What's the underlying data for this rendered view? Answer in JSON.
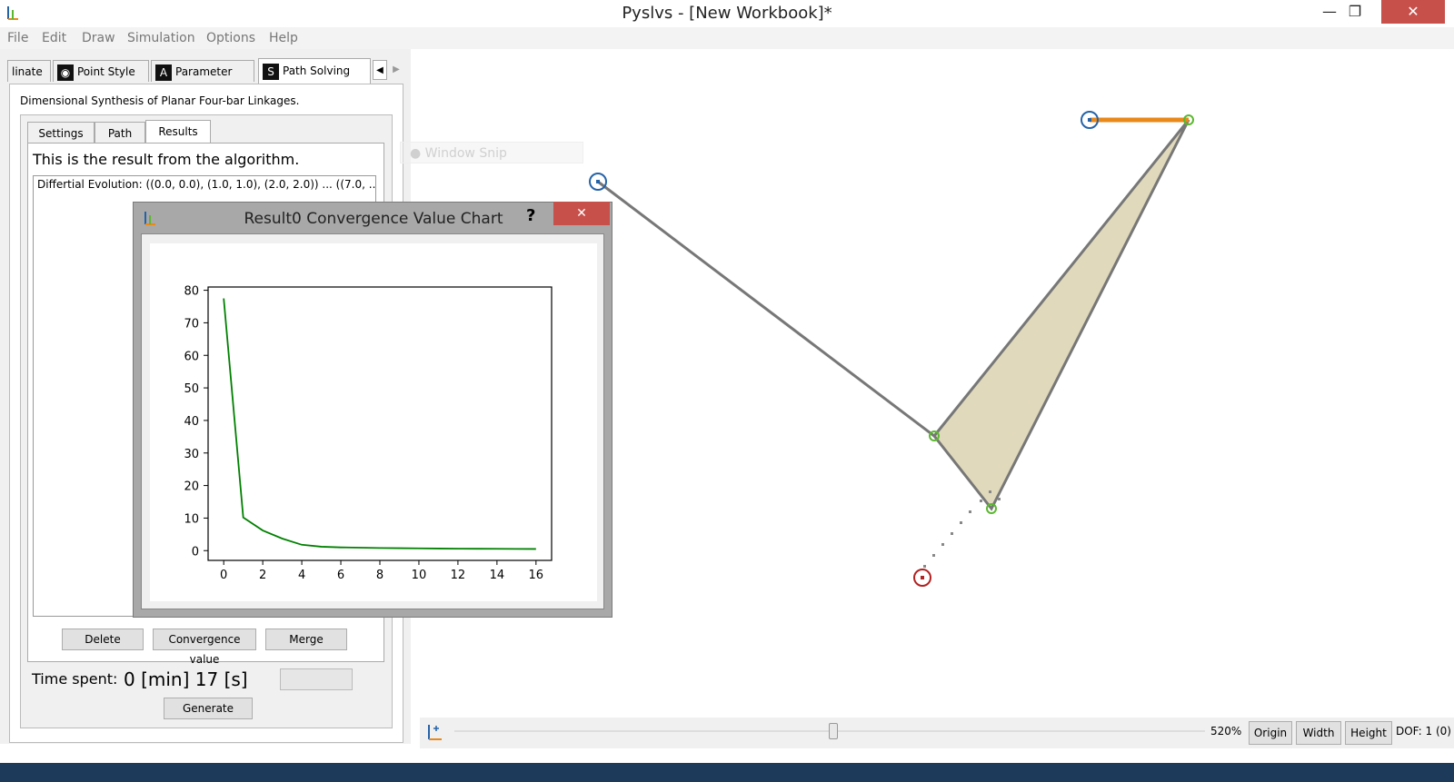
{
  "window": {
    "title": "Pyslvs - [New Workbook]*",
    "minimize_glyph": "—",
    "maximize_glyph": "❐",
    "close_glyph": "✕"
  },
  "menu": [
    "File",
    "Edit",
    "Draw",
    "Simulation",
    "Options",
    "Help"
  ],
  "dock_tabs": {
    "items": [
      {
        "label": "linate",
        "icon": ""
      },
      {
        "label": "Point Style",
        "icon": "◉"
      },
      {
        "label": "Parameter",
        "icon": "A"
      },
      {
        "label": "Path Solving",
        "icon": "S"
      }
    ],
    "left_arrow": "◀",
    "right_arrow": "▶"
  },
  "path_solving": {
    "description": "Dimensional Synthesis of Planar Four-bar Linkages.",
    "subtabs": [
      "Settings",
      "Path",
      "Results"
    ],
    "results_heading": "This is the result from the algorithm.",
    "result_items": [
      "Differtial Evolution: ((0.0, 0.0), (1.0, 1.0), (2.0, 2.0)) ... ((7.0, ..."
    ],
    "buttons": {
      "delete": "Delete",
      "convergence": "Convergence value",
      "merge": "Merge"
    },
    "time_label": "Time spent:",
    "time_value": "0 [min] 17 [s]",
    "generate": "Generate"
  },
  "dialog": {
    "title": "Result0 Convergence Value Chart",
    "help": "?",
    "close": "✕"
  },
  "ghost": {
    "window_snip": "Window Snip"
  },
  "chart_data": {
    "type": "line",
    "title": "",
    "xlabel": "",
    "ylabel": "",
    "xlim": [
      -0.8,
      16.8
    ],
    "ylim": [
      -3,
      81
    ],
    "x": [
      0,
      1,
      2,
      3,
      4,
      5,
      6,
      7,
      8,
      9,
      10,
      11,
      12,
      13,
      14,
      15,
      16
    ],
    "series": [
      {
        "color": "#008000",
        "values": [
          77.5,
          10.2,
          6.2,
          3.7,
          1.8,
          1.2,
          1.0,
          0.9,
          0.8,
          0.75,
          0.7,
          0.65,
          0.6,
          0.58,
          0.55,
          0.53,
          0.5
        ]
      }
    ],
    "xticks": [
      "0",
      "2",
      "4",
      "6",
      "8",
      "10",
      "12",
      "14",
      "16"
    ],
    "yticks": [
      "0",
      "10",
      "20",
      "30",
      "40",
      "50",
      "60",
      "70",
      "80"
    ],
    "grid": false
  },
  "status": {
    "zoom": "520%",
    "origin": "Origin",
    "width": "Width",
    "height": "Height",
    "dof": "DOF: 1 (0)"
  },
  "colors": {
    "accent": "#e8891a",
    "link_fill": "#e0d9bc",
    "ground": "#2563a8",
    "driver": "#b22222",
    "joint": "#5ab82e",
    "close_btn": "#c7504a"
  }
}
